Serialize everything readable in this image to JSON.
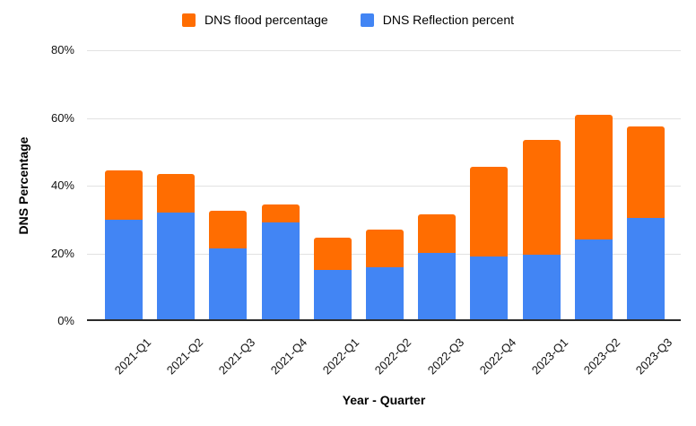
{
  "legend": [
    {
      "label": "DNS flood percentage",
      "color": "#FF6D01"
    },
    {
      "label": "DNS Reflection percent",
      "color": "#4285F4"
    }
  ],
  "colors": {
    "flood_orange": "#FF6D01",
    "reflection_blue": "#4285F4",
    "gridline": "#e2e2e2",
    "axis_line": "#2b2b2b"
  },
  "chart_data": {
    "type": "bar",
    "stacked": true,
    "title": "",
    "xlabel": "Year - Quarter",
    "ylabel": "DNS Percentage",
    "ylim": [
      0,
      80
    ],
    "grid": true,
    "legend_position": "top",
    "categories": [
      "2021-Q1",
      "2021-Q2",
      "2021-Q3",
      "2021-Q4",
      "2022-Q1",
      "2022-Q2",
      "2022-Q3",
      "2022-Q4",
      "2023-Q1",
      "2023-Q2",
      "2023-Q3"
    ],
    "yticks": [
      {
        "label": "0%",
        "value": 0
      },
      {
        "label": "20%",
        "value": 20
      },
      {
        "label": "40%",
        "value": 40
      },
      {
        "label": "60%",
        "value": 60
      },
      {
        "label": "80%",
        "value": 80
      }
    ],
    "series": [
      {
        "name": "DNS Reflection percent",
        "color": "#4285F4",
        "values": [
          29.5,
          31.5,
          21,
          28.5,
          14.5,
          15.5,
          19.5,
          18.5,
          19,
          23.5,
          30
        ]
      },
      {
        "name": "DNS flood percentage",
        "color": "#FF6D01",
        "values": [
          14.5,
          11.5,
          11,
          5.5,
          9.5,
          11,
          11.5,
          26.5,
          34,
          37,
          27
        ]
      }
    ],
    "stack_totals": [
      44,
      43,
      32,
      34,
      24,
      26.5,
      31,
      45,
      53,
      60.5,
      57
    ]
  }
}
